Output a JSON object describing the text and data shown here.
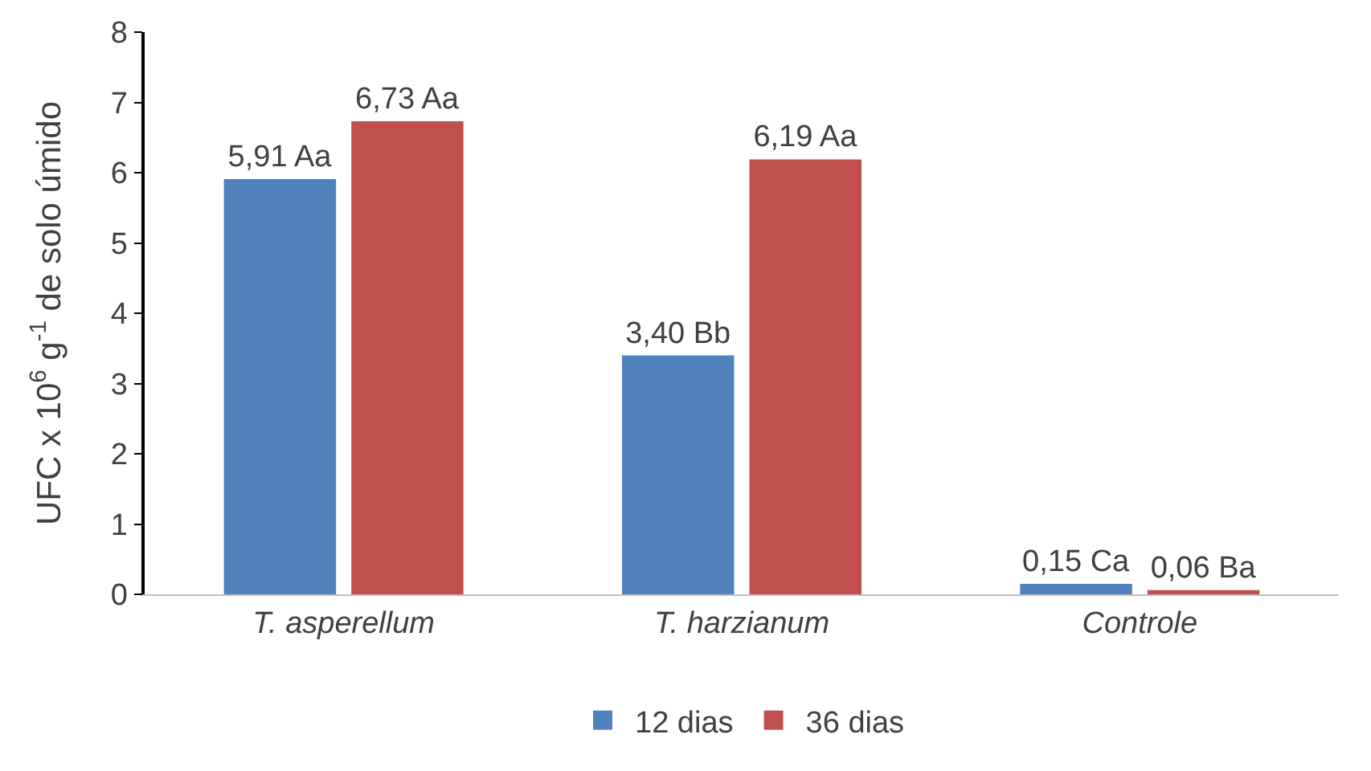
{
  "chart_data": {
    "type": "bar",
    "ylabel": "UFC x 10$^{6}$ g$^{-1}$ de solo úmido",
    "categories": [
      "T. asperellum",
      "T. harzianum",
      "Controle"
    ],
    "series": [
      {
        "name": "12 dias",
        "color": "#4f81bd",
        "values": [
          5.91,
          3.4,
          0.15
        ],
        "value_labels": [
          "5,91 Aa",
          "3,40 Bb",
          "0,15 Ca"
        ]
      },
      {
        "name": "36 dias",
        "color": "#c0504d",
        "values": [
          6.73,
          6.19,
          0.06
        ],
        "value_labels": [
          "6,73 Aa",
          "6,19 Aa",
          "0,06 Ba"
        ]
      }
    ],
    "ylim": [
      0,
      8
    ],
    "yticks": [
      0,
      1,
      2,
      3,
      4,
      5,
      6,
      7,
      8
    ],
    "grid": false,
    "legend": "bottom"
  }
}
